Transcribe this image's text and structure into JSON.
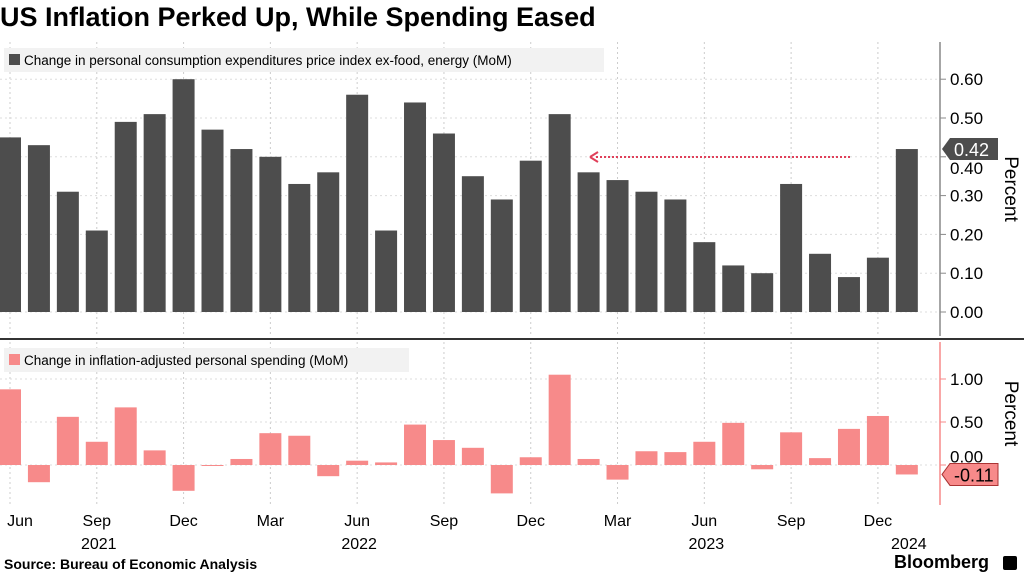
{
  "title": "US Inflation Perked Up, While Spending Eased",
  "source": "Source: Bureau of Economic Analysis",
  "logo": "Bloomberg",
  "chart_data": [
    {
      "type": "bar",
      "legend": "Change in personal consumption expenditures price index ex-food, energy (MoM)",
      "color": "#4d4d4d",
      "ylabel": "Percent",
      "ylim": [
        -0.07,
        0.7
      ],
      "yticks": [
        "0.00",
        "0.10",
        "0.20",
        "0.30",
        "0.40",
        "0.50",
        "0.60"
      ],
      "last_label": "0.42",
      "annotation": "dotted arrow pointing left at 0.42 level",
      "values": [
        0.45,
        0.43,
        0.31,
        0.21,
        0.49,
        0.51,
        0.6,
        0.47,
        0.42,
        0.4,
        0.33,
        0.36,
        0.56,
        0.21,
        0.54,
        0.46,
        0.35,
        0.29,
        0.39,
        0.51,
        0.36,
        0.34,
        0.31,
        0.29,
        0.18,
        0.12,
        0.1,
        0.33,
        0.15,
        0.09,
        0.14,
        0.42
      ]
    },
    {
      "type": "bar",
      "legend": "Change in inflation-adjusted personal spending (MoM)",
      "color": "#f78a8a",
      "ylabel": "Percent",
      "ylim": [
        -0.45,
        1.3
      ],
      "yticks": [
        "0.00",
        "0.50",
        "1.00"
      ],
      "last_label": "-0.11",
      "values": [
        0.88,
        -0.2,
        0.56,
        0.27,
        0.67,
        0.17,
        -0.3,
        -0.01,
        0.07,
        0.37,
        0.34,
        -0.13,
        0.05,
        0.03,
        0.47,
        0.29,
        0.2,
        -0.33,
        0.09,
        1.05,
        0.07,
        -0.17,
        0.16,
        0.15,
        0.27,
        0.49,
        -0.05,
        0.38,
        0.08,
        0.42,
        0.57,
        -0.11
      ]
    }
  ],
  "x_axis": {
    "months": [
      "Jun 2021",
      "Jul 2021",
      "Aug 2021",
      "Sep 2021",
      "Oct 2021",
      "Nov 2021",
      "Dec 2021",
      "Jan 2022",
      "Feb 2022",
      "Mar 2022",
      "Apr 2022",
      "May 2022",
      "Jun 2022",
      "Jul 2022",
      "Aug 2022",
      "Sep 2022",
      "Oct 2022",
      "Nov 2022",
      "Dec 2022",
      "Jan 2023",
      "Feb 2023",
      "Mar 2023",
      "Apr 2023",
      "May 2023",
      "Jun 2023",
      "Jul 2023",
      "Aug 2023",
      "Sep 2023",
      "Oct 2023",
      "Nov 2023",
      "Dec 2023",
      "Jan 2024"
    ],
    "tick_labels": [
      {
        "i": 0,
        "label": "Jun"
      },
      {
        "i": 3,
        "label": "Sep"
      },
      {
        "i": 6,
        "label": "Dec"
      },
      {
        "i": 9,
        "label": "Mar"
      },
      {
        "i": 12,
        "label": "Jun"
      },
      {
        "i": 15,
        "label": "Sep"
      },
      {
        "i": 18,
        "label": "Dec"
      },
      {
        "i": 21,
        "label": "Mar"
      },
      {
        "i": 24,
        "label": "Jun"
      },
      {
        "i": 27,
        "label": "Sep"
      },
      {
        "i": 30,
        "label": "Dec"
      }
    ],
    "year_labels": [
      {
        "i": 3,
        "label": "2021"
      },
      {
        "i": 12,
        "label": "2022"
      },
      {
        "i": 24,
        "label": "2023"
      },
      {
        "i": 31,
        "label": "2024"
      }
    ]
  }
}
